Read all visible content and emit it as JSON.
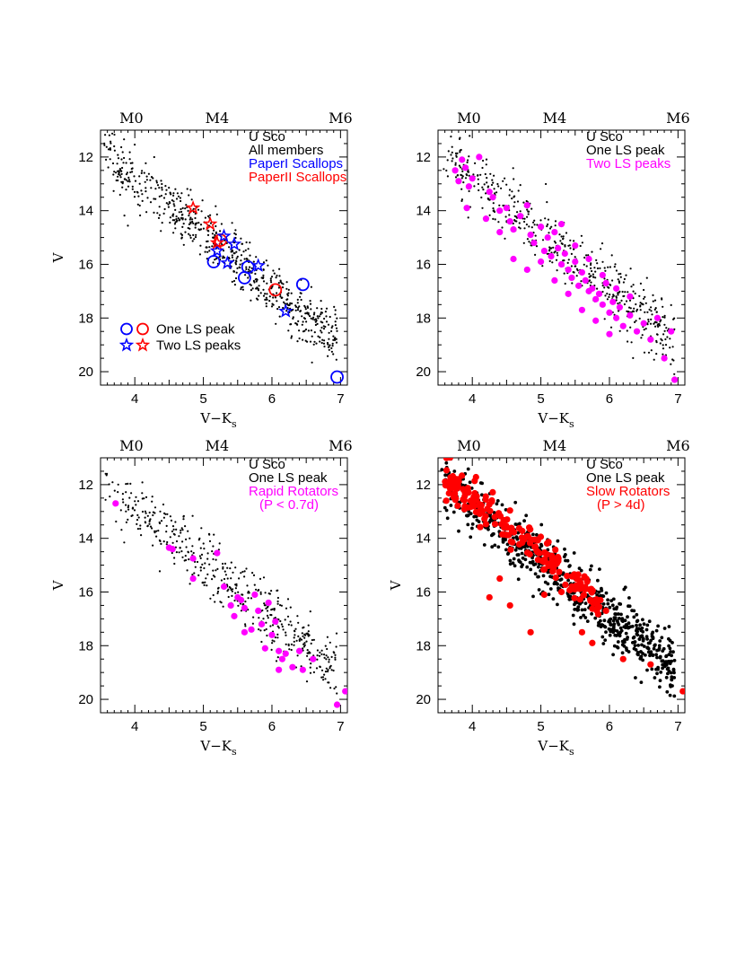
{
  "chart_data": [
    {
      "type": "scatter",
      "panel": "top-left",
      "xlabel_main": "V−K",
      "xlabel_sub": "s",
      "ylabel": "V",
      "xlim": [
        3.5,
        7.1
      ],
      "ylim": [
        20.5,
        11.0
      ],
      "x_ticks": [
        "4",
        "5",
        "6",
        "7"
      ],
      "y_ticks": [
        "12",
        "14",
        "16",
        "18",
        "20"
      ],
      "spectral_types": [
        {
          "label": "M0",
          "x": 3.95
        },
        {
          "label": "M4",
          "x": 5.2
        },
        {
          "label": "M6",
          "x": 7.0
        }
      ],
      "legend": [
        {
          "text": "U Sco",
          "color": "#000000"
        },
        {
          "text": "All members",
          "color": "#000000"
        },
        {
          "text": "PaperI Scallops",
          "color": "#0000ff"
        },
        {
          "text": "PaperII Scallops",
          "color": "#ff0000"
        }
      ],
      "marker_legend": [
        {
          "text": "One LS peak",
          "marker": "circle"
        },
        {
          "text": "Two LS peaks",
          "marker": "star"
        }
      ],
      "background_series": {
        "name": "All members",
        "color": "#000000",
        "seed": 11,
        "n": 650
      },
      "series": [
        {
          "name": "PaperI Scallops – One LS peak",
          "marker": "circle",
          "color": "#0000ff",
          "x": [
            5.15,
            5.65,
            5.6,
            6.45,
            6.95
          ],
          "y": [
            15.9,
            16.1,
            16.5,
            16.75,
            20.2
          ]
        },
        {
          "name": "PaperII Scallops – One LS peak",
          "marker": "circle",
          "color": "#ff0000",
          "x": [
            5.25,
            6.05
          ],
          "y": [
            15.1,
            16.95
          ]
        },
        {
          "name": "PaperI Scallops – Two LS peaks",
          "marker": "star",
          "color": "#0000ff",
          "x": [
            5.3,
            5.45,
            5.2,
            5.35,
            5.8,
            6.2
          ],
          "y": [
            14.95,
            15.25,
            15.5,
            15.95,
            16.05,
            17.75
          ]
        },
        {
          "name": "PaperII Scallops – Two LS peaks",
          "marker": "star",
          "color": "#ff0000",
          "x": [
            4.85,
            5.1,
            5.2
          ],
          "y": [
            13.9,
            14.5,
            15.2
          ]
        }
      ]
    },
    {
      "type": "scatter",
      "panel": "top-right",
      "xlabel_main": "V−K",
      "xlabel_sub": "s",
      "ylabel": "",
      "xlim": [
        3.5,
        7.1
      ],
      "ylim": [
        20.5,
        11.0
      ],
      "x_ticks": [
        "4",
        "5",
        "6",
        "7"
      ],
      "y_ticks": [
        "12",
        "14",
        "16",
        "18",
        "20"
      ],
      "spectral_types": [
        {
          "label": "M0",
          "x": 3.95
        },
        {
          "label": "M4",
          "x": 5.2
        },
        {
          "label": "M6",
          "x": 7.0
        }
      ],
      "legend": [
        {
          "text": "U Sco",
          "color": "#000000"
        },
        {
          "text": "One LS peak",
          "color": "#000000"
        },
        {
          "text": "Two LS peaks",
          "color": "#ff00ff"
        }
      ],
      "marker_legend": [],
      "background_series": {
        "name": "One LS peak",
        "color": "#000000",
        "seed": 23,
        "n": 520
      },
      "series": [
        {
          "name": "Two LS peaks",
          "marker": "dot",
          "color": "#ff00ff",
          "x": [
            3.75,
            3.8,
            3.85,
            3.9,
            3.95,
            4.0,
            4.1,
            3.92,
            4.25,
            4.3,
            4.4,
            4.5,
            4.55,
            4.6,
            4.7,
            4.8,
            4.85,
            4.9,
            5.0,
            5.05,
            5.1,
            5.15,
            5.2,
            5.25,
            5.3,
            5.35,
            5.4,
            5.45,
            5.5,
            5.55,
            5.6,
            5.65,
            5.7,
            5.75,
            5.8,
            5.85,
            5.9,
            5.95,
            6.0,
            6.05,
            6.1,
            6.15,
            6.2,
            6.3,
            6.4,
            6.5,
            6.6,
            6.7,
            6.8,
            6.9,
            5.3,
            5.5,
            5.7,
            5.9,
            6.1,
            6.3,
            5.0,
            5.2,
            5.4,
            5.6,
            5.8,
            6.0,
            4.6,
            4.8,
            4.4,
            4.2,
            6.95
          ],
          "y": [
            12.5,
            12.9,
            12.1,
            12.4,
            13.1,
            12.8,
            12.0,
            13.9,
            13.3,
            13.5,
            14.0,
            13.9,
            14.4,
            14.7,
            14.2,
            13.8,
            14.9,
            15.2,
            14.6,
            15.5,
            15.0,
            15.7,
            14.8,
            15.4,
            16.0,
            15.6,
            16.2,
            16.5,
            15.9,
            16.8,
            16.3,
            16.6,
            17.0,
            16.9,
            17.3,
            17.1,
            17.5,
            16.7,
            17.8,
            17.4,
            18.0,
            17.6,
            18.3,
            17.9,
            18.5,
            18.2,
            18.8,
            18.0,
            19.5,
            18.5,
            14.5,
            15.3,
            15.8,
            16.4,
            16.9,
            17.2,
            15.9,
            16.6,
            17.1,
            17.7,
            18.1,
            18.6,
            15.8,
            16.2,
            14.8,
            14.3,
            20.3
          ]
        }
      ]
    },
    {
      "type": "scatter",
      "panel": "bottom-left",
      "xlabel_main": "V−K",
      "xlabel_sub": "s",
      "ylabel": "V",
      "xlim": [
        3.5,
        7.1
      ],
      "ylim": [
        20.5,
        11.0
      ],
      "x_ticks": [
        "4",
        "5",
        "6",
        "7"
      ],
      "y_ticks": [
        "12",
        "14",
        "16",
        "18",
        "20"
      ],
      "spectral_types": [
        {
          "label": "M0",
          "x": 3.95
        },
        {
          "label": "M4",
          "x": 5.2
        },
        {
          "label": "M6",
          "x": 7.0
        }
      ],
      "legend": [
        {
          "text": "U Sco",
          "color": "#000000"
        },
        {
          "text": "One LS peak",
          "color": "#000000"
        },
        {
          "text": "Rapid Rotators",
          "color": "#ff00ff"
        },
        {
          "text": "(P < 0.7d)",
          "color": "#ff00ff"
        }
      ],
      "marker_legend": [],
      "background_series": {
        "name": "One LS peak",
        "color": "#000000",
        "seed": 37,
        "n": 480
      },
      "series": [
        {
          "name": "Rapid Rotators",
          "marker": "dot",
          "color": "#ff00ff",
          "x": [
            3.72,
            4.5,
            4.55,
            4.85,
            4.85,
            5.2,
            5.3,
            5.4,
            5.45,
            5.5,
            5.6,
            5.6,
            5.7,
            5.75,
            5.8,
            5.85,
            5.9,
            5.95,
            6.0,
            6.05,
            6.1,
            6.15,
            6.2,
            6.3,
            6.4,
            6.45,
            6.6,
            6.95,
            7.07,
            5.55,
            6.1
          ],
          "y": [
            12.7,
            14.35,
            14.4,
            14.75,
            15.5,
            14.55,
            15.8,
            16.5,
            16.9,
            16.2,
            16.6,
            17.5,
            17.4,
            16.1,
            16.7,
            17.2,
            18.1,
            16.4,
            17.6,
            17.1,
            18.2,
            18.5,
            18.3,
            18.8,
            18.2,
            18.9,
            18.5,
            20.2,
            19.7,
            16.3,
            18.9
          ]
        }
      ]
    },
    {
      "type": "scatter",
      "panel": "bottom-right",
      "xlabel_main": "V−K",
      "xlabel_sub": "s",
      "ylabel": "V",
      "xlim": [
        3.5,
        7.1
      ],
      "ylim": [
        20.5,
        11.0
      ],
      "x_ticks": [
        "4",
        "5",
        "6",
        "7"
      ],
      "y_ticks": [
        "12",
        "14",
        "16",
        "18",
        "20"
      ],
      "spectral_types": [
        {
          "label": "M0",
          "x": 3.95
        },
        {
          "label": "M4",
          "x": 5.2
        },
        {
          "label": "M6",
          "x": 7.0
        }
      ],
      "legend": [
        {
          "text": "U Sco",
          "color": "#000000"
        },
        {
          "text": "One LS peak",
          "color": "#000000"
        },
        {
          "text": "Slow Rotators",
          "color": "#ff0000"
        },
        {
          "text": "(P > 4d)",
          "color": "#ff0000"
        }
      ],
      "marker_legend": [],
      "background_series": {
        "name": "One LS peak",
        "color": "#000000",
        "seed": 53,
        "n": 700
      },
      "slow_series": {
        "name": "Slow Rotators",
        "color": "#ff0000",
        "seed": 71,
        "n": 190,
        "x_min": 3.6,
        "x_max": 5.9
      },
      "series": [
        {
          "name": "Slow Rotators outliers",
          "marker": "dot",
          "color": "#ff0000",
          "x": [
            3.75,
            4.25,
            4.55,
            4.85,
            5.3,
            5.6,
            5.75,
            5.95,
            6.2,
            6.6,
            7.07,
            5.05,
            4.4,
            3.62
          ],
          "y": [
            12.1,
            16.2,
            16.5,
            17.5,
            16.0,
            17.5,
            17.9,
            16.7,
            18.5,
            18.7,
            19.7,
            16.1,
            15.5,
            12.6
          ]
        }
      ]
    }
  ]
}
